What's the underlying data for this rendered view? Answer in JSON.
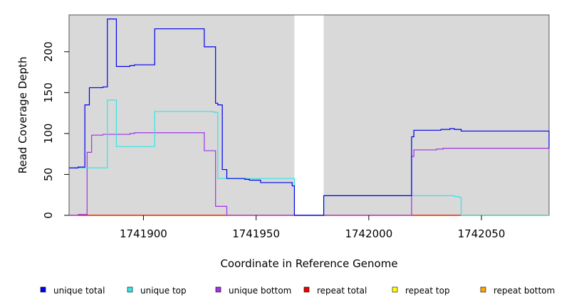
{
  "chart_data": {
    "type": "line",
    "title": "",
    "xlabel": "Coordinate in Reference Genome",
    "ylabel": "Read Coverage Depth",
    "xlim": [
      1741867,
      1742080
    ],
    "ylim": [
      0,
      245
    ],
    "xticks": [
      1741900,
      1741950,
      1742000,
      1742050
    ],
    "xtick_labels": [
      "1741900",
      "1741950",
      "1742000",
      "1742050"
    ],
    "yticks": [
      0,
      50,
      100,
      150,
      200
    ],
    "ytick_labels": [
      "0",
      "50",
      "100",
      "150",
      "200"
    ],
    "grid": false,
    "shaded_regions": [
      [
        1741867,
        1741967
      ],
      [
        1741980,
        1742080
      ]
    ],
    "legend": {
      "position": "bottom",
      "entries": [
        {
          "label": "unique total",
          "color": "#0000ee"
        },
        {
          "label": "unique top",
          "color": "#33e5e5"
        },
        {
          "label": "unique bottom",
          "color": "#a033e5"
        },
        {
          "label": "repeat total",
          "color": "#ee0000"
        },
        {
          "label": "repeat top",
          "color": "#ffff00"
        },
        {
          "label": "repeat bottom",
          "color": "#ffa500"
        }
      ]
    },
    "series": [
      {
        "name": "unique total",
        "color": "#0000ee",
        "step": true,
        "x": [
          1741867,
          1741871,
          1741874,
          1741876,
          1741880,
          1741882,
          1741884,
          1741888,
          1741894,
          1741896,
          1741905,
          1741927,
          1741932,
          1741933,
          1741935,
          1741937,
          1741945,
          1741947,
          1741952,
          1741966,
          1741967,
          1741980,
          1742019,
          1742020,
          1742029,
          1742032,
          1742033,
          1742036,
          1742038,
          1742040,
          1742041,
          1742080
        ],
        "y": [
          58,
          59,
          135,
          156,
          156,
          157,
          240,
          182,
          183,
          184,
          228,
          206,
          137,
          135,
          56,
          45,
          44,
          43,
          40,
          36,
          0,
          24,
          96,
          104,
          104,
          105,
          105,
          106,
          105,
          105,
          103,
          82
        ]
      },
      {
        "name": "unique top",
        "color": "#33e5e5",
        "step": true,
        "x": [
          1741867,
          1741871,
          1741873,
          1741875,
          1741884,
          1741888,
          1741905,
          1741931,
          1741933,
          1741967,
          1741980,
          1742019,
          1742038,
          1742040,
          1742041,
          1742080
        ],
        "y": [
          58,
          58,
          58,
          58,
          141,
          84,
          127,
          126,
          45,
          0,
          24,
          24,
          23,
          22,
          0,
          0
        ]
      },
      {
        "name": "unique bottom",
        "color": "#a033e5",
        "step": true,
        "x": [
          1741867,
          1741871,
          1741875,
          1741877,
          1741882,
          1741884,
          1741894,
          1741896,
          1741927,
          1741932,
          1741937,
          1741967,
          1741980,
          1742019,
          1742020,
          1742030,
          1742033,
          1742036,
          1742080
        ],
        "y": [
          0,
          1,
          77,
          98,
          99,
          99,
          100,
          101,
          79,
          11,
          0,
          0,
          0,
          72,
          80,
          81,
          82,
          82,
          82
        ]
      },
      {
        "name": "repeat total",
        "color": "#ee0000",
        "step": true,
        "x": [
          1741867,
          1742080
        ],
        "y": [
          0,
          0
        ]
      },
      {
        "name": "repeat top",
        "color": "#ffff00",
        "step": true,
        "x": [
          1741867,
          1742080
        ],
        "y": [
          0,
          0
        ]
      },
      {
        "name": "repeat bottom",
        "color": "#ffa500",
        "step": true,
        "x": [
          1741867,
          1742080
        ],
        "y": [
          0,
          0
        ]
      }
    ]
  }
}
